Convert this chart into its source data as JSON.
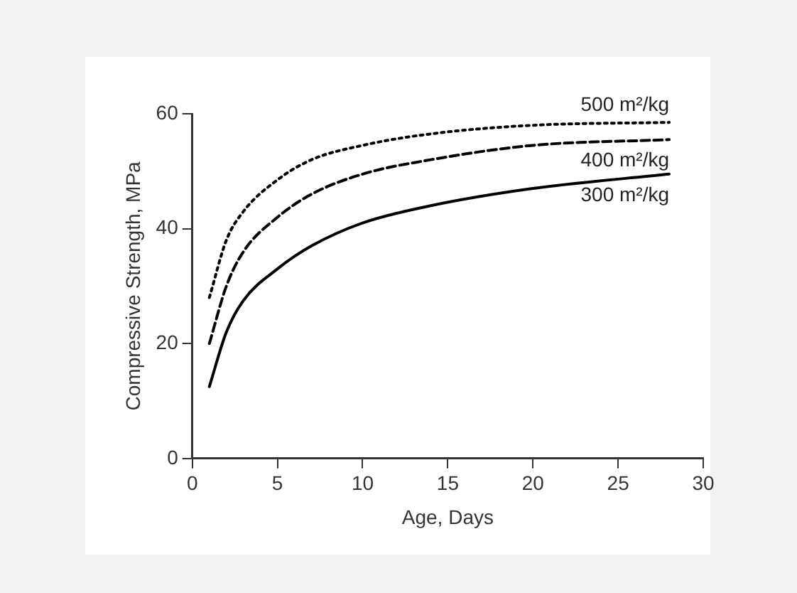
{
  "chart_data": {
    "type": "line",
    "xlabel": "Age, Days",
    "ylabel": "Compressive Strength, MPa",
    "x": [
      1,
      2,
      3,
      5,
      7,
      10,
      14,
      20,
      28
    ],
    "series": [
      {
        "name": "500 m²/kg",
        "color": "#000000",
        "line_style": "dotted",
        "values": [
          28,
          38,
          43,
          48.5,
          52,
          54.5,
          56.5,
          58,
          58.5
        ]
      },
      {
        "name": "400 m²/kg",
        "color": "#000000",
        "line_style": "dashed",
        "values": [
          20,
          30,
          36,
          42,
          46,
          49.5,
          52,
          54.5,
          55.5
        ]
      },
      {
        "name": "300 m²/kg",
        "color": "#000000",
        "line_style": "solid",
        "values": [
          12.5,
          22,
          27.5,
          33,
          37,
          41,
          44,
          47,
          49.5
        ]
      }
    ],
    "xlim": [
      0,
      30
    ],
    "xticks": [
      0,
      5,
      10,
      15,
      20,
      25,
      30
    ],
    "ylim": [
      0,
      60
    ],
    "yticks": [
      0,
      20,
      40,
      60
    ],
    "grid": false,
    "legend": false,
    "marker": "none"
  }
}
